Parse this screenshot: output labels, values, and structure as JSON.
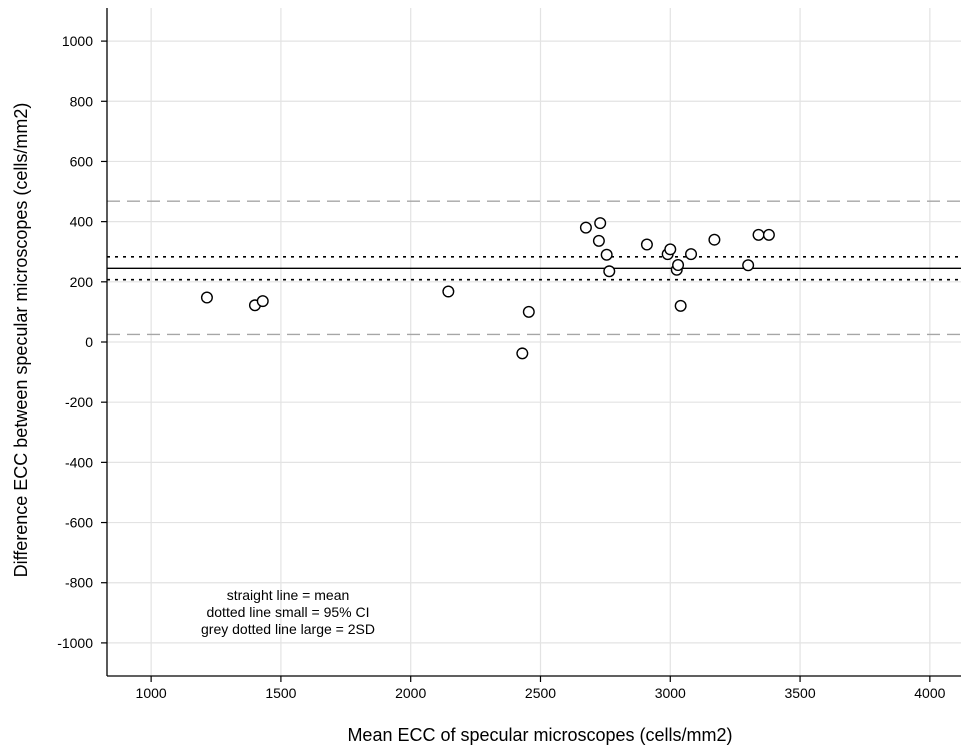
{
  "chart_data": {
    "type": "scatter",
    "title": "",
    "xlabel": "Mean ECC of specular microscopes (cells/mm2)",
    "ylabel": "Difference ECC between specular microscopes (cells/mm2)",
    "xlim": [
      830,
      4120
    ],
    "ylim": [
      -1110,
      1110
    ],
    "xticks": [
      1000,
      1500,
      2000,
      2500,
      3000,
      3500,
      4000
    ],
    "yticks": [
      -1000,
      -800,
      -600,
      -400,
      -200,
      0,
      200,
      400,
      600,
      800,
      1000
    ],
    "grid": true,
    "points": [
      {
        "x": 1215,
        "y": 148
      },
      {
        "x": 1400,
        "y": 122
      },
      {
        "x": 1430,
        "y": 136
      },
      {
        "x": 2145,
        "y": 168
      },
      {
        "x": 2430,
        "y": -38
      },
      {
        "x": 2455,
        "y": 100
      },
      {
        "x": 2675,
        "y": 380
      },
      {
        "x": 2725,
        "y": 336
      },
      {
        "x": 2730,
        "y": 395
      },
      {
        "x": 2755,
        "y": 290
      },
      {
        "x": 2765,
        "y": 235
      },
      {
        "x": 2910,
        "y": 324
      },
      {
        "x": 2990,
        "y": 292
      },
      {
        "x": 3000,
        "y": 308
      },
      {
        "x": 3025,
        "y": 240
      },
      {
        "x": 3030,
        "y": 256
      },
      {
        "x": 3040,
        "y": 120
      },
      {
        "x": 3080,
        "y": 292
      },
      {
        "x": 3170,
        "y": 340
      },
      {
        "x": 3300,
        "y": 255
      },
      {
        "x": 3340,
        "y": 356
      },
      {
        "x": 3380,
        "y": 356
      }
    ],
    "reference_lines": [
      {
        "kind": "mean",
        "y": 245,
        "style": "solid"
      },
      {
        "kind": "ci_upper",
        "y": 283,
        "style": "dotted"
      },
      {
        "kind": "ci_lower",
        "y": 207,
        "style": "dotted"
      },
      {
        "kind": "sd_upper",
        "y": 468,
        "style": "grey-dashed"
      },
      {
        "kind": "sd_lower",
        "y": 25,
        "style": "grey-dashed"
      }
    ],
    "annotations": [
      "straight line = mean",
      "dotted line small = 95% CI",
      "grey dotted line large = 2SD"
    ]
  },
  "colors": {
    "grid": "#e3e3e3",
    "axis": "#000000",
    "mean_line": "#000000",
    "ci_line": "#000000",
    "sd_line": "#a6a6a6",
    "marker_stroke": "#000000",
    "marker_fill": "#ffffff"
  }
}
